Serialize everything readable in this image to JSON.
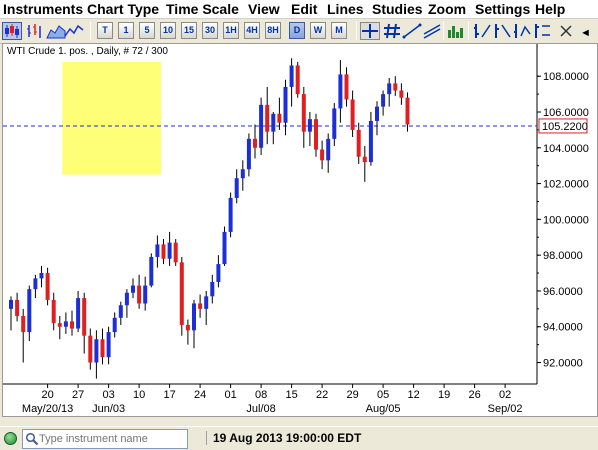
{
  "menu": [
    "Instruments",
    "Chart Type",
    "Time Scale",
    "View",
    "Edit",
    "Lines",
    "Studies",
    "Zoom",
    "Settings",
    "Help"
  ],
  "toolbar": {
    "timeframes": [
      "T",
      "1",
      "5",
      "10",
      "15",
      "30",
      "1H",
      "4H",
      "8H",
      "D",
      "W",
      "M"
    ],
    "active_timeframe": "D",
    "scroll_glyph": "◄"
  },
  "chart": {
    "title": "WTI Crude 1. pos. , Daily, # 72 / 300",
    "price_label": "105.2200",
    "colors": {
      "up": "#1c2ed6",
      "down": "#e02020",
      "highlight": "#ffff77",
      "hline": "#1c2ed6",
      "price_box": "#dd2222"
    }
  },
  "chart_data": {
    "type": "candlestick",
    "y_ticks": [
      "92.0000",
      "94.0000",
      "96.0000",
      "98.0000",
      "100.0000",
      "102.0000",
      "104.0000",
      "106.0000",
      "108.0000"
    ],
    "ylim": [
      90.8,
      109.8
    ],
    "x_day_labels": [
      "20",
      "27",
      "03",
      "10",
      "17",
      "24",
      "01",
      "08",
      "15",
      "22",
      "29",
      "05",
      "12",
      "19",
      "26",
      "02"
    ],
    "x_month_labels": [
      "May/20/13",
      "Jun/03",
      "Jul/08",
      "Aug/05",
      "Sep/02"
    ],
    "horizontal_line": 105.22,
    "highlight_box": {
      "x_start": 8.4,
      "x_end": 24.6,
      "y_low": 102.5,
      "y_high": 108.8
    },
    "candles": [
      {
        "o": 95.0,
        "h": 95.7,
        "l": 93.8,
        "c": 95.5
      },
      {
        "o": 95.5,
        "h": 95.9,
        "l": 94.3,
        "c": 94.6
      },
      {
        "o": 94.6,
        "h": 95.0,
        "l": 92.0,
        "c": 93.7
      },
      {
        "o": 93.7,
        "h": 96.3,
        "l": 93.2,
        "c": 96.1
      },
      {
        "o": 96.1,
        "h": 96.9,
        "l": 95.6,
        "c": 96.7
      },
      {
        "o": 96.7,
        "h": 97.4,
        "l": 96.2,
        "c": 97.0
      },
      {
        "o": 97.0,
        "h": 97.3,
        "l": 95.2,
        "c": 95.5
      },
      {
        "o": 95.5,
        "h": 95.9,
        "l": 93.8,
        "c": 94.2
      },
      {
        "o": 94.2,
        "h": 94.6,
        "l": 93.3,
        "c": 94.0
      },
      {
        "o": 94.0,
        "h": 94.8,
        "l": 93.6,
        "c": 94.3
      },
      {
        "o": 94.3,
        "h": 94.9,
        "l": 93.5,
        "c": 93.9
      },
      {
        "o": 93.9,
        "h": 96.0,
        "l": 93.7,
        "c": 95.6
      },
      {
        "o": 95.6,
        "h": 95.9,
        "l": 92.5,
        "c": 93.5
      },
      {
        "o": 93.5,
        "h": 93.9,
        "l": 91.6,
        "c": 92.0
      },
      {
        "o": 92.0,
        "h": 93.8,
        "l": 91.1,
        "c": 93.3
      },
      {
        "o": 93.3,
        "h": 93.9,
        "l": 91.9,
        "c": 92.3
      },
      {
        "o": 92.3,
        "h": 94.0,
        "l": 91.9,
        "c": 93.7
      },
      {
        "o": 93.7,
        "h": 94.8,
        "l": 93.4,
        "c": 94.5
      },
      {
        "o": 94.5,
        "h": 95.4,
        "l": 94.1,
        "c": 95.2
      },
      {
        "o": 95.2,
        "h": 96.1,
        "l": 94.5,
        "c": 95.9
      },
      {
        "o": 95.9,
        "h": 96.7,
        "l": 95.6,
        "c": 96.3
      },
      {
        "o": 96.3,
        "h": 96.9,
        "l": 95.0,
        "c": 95.3
      },
      {
        "o": 95.3,
        "h": 96.8,
        "l": 94.9,
        "c": 96.3
      },
      {
        "o": 96.3,
        "h": 98.1,
        "l": 96.2,
        "c": 97.9
      },
      {
        "o": 97.9,
        "h": 99.1,
        "l": 97.3,
        "c": 98.6
      },
      {
        "o": 98.6,
        "h": 98.9,
        "l": 97.5,
        "c": 97.8
      },
      {
        "o": 97.8,
        "h": 99.3,
        "l": 97.4,
        "c": 98.7
      },
      {
        "o": 98.7,
        "h": 98.9,
        "l": 97.4,
        "c": 97.6
      },
      {
        "o": 97.6,
        "h": 97.9,
        "l": 93.5,
        "c": 94.1
      },
      {
        "o": 94.1,
        "h": 94.4,
        "l": 93.0,
        "c": 93.8
      },
      {
        "o": 93.8,
        "h": 95.5,
        "l": 92.8,
        "c": 95.3
      },
      {
        "o": 95.3,
        "h": 95.8,
        "l": 94.5,
        "c": 95.0
      },
      {
        "o": 95.0,
        "h": 96.0,
        "l": 94.1,
        "c": 95.7
      },
      {
        "o": 95.7,
        "h": 96.9,
        "l": 95.3,
        "c": 96.5
      },
      {
        "o": 96.5,
        "h": 98.0,
        "l": 96.2,
        "c": 97.5
      },
      {
        "o": 97.5,
        "h": 99.6,
        "l": 97.4,
        "c": 99.3
      },
      {
        "o": 99.3,
        "h": 101.5,
        "l": 99.0,
        "c": 101.2
      },
      {
        "o": 101.2,
        "h": 102.8,
        "l": 100.9,
        "c": 102.3
      },
      {
        "o": 102.3,
        "h": 103.3,
        "l": 101.6,
        "c": 102.8
      },
      {
        "o": 102.8,
        "h": 104.8,
        "l": 102.4,
        "c": 104.5
      },
      {
        "o": 104.5,
        "h": 105.3,
        "l": 103.4,
        "c": 104.0
      },
      {
        "o": 104.0,
        "h": 106.8,
        "l": 103.6,
        "c": 106.4
      },
      {
        "o": 106.4,
        "h": 107.4,
        "l": 104.2,
        "c": 104.9
      },
      {
        "o": 104.9,
        "h": 106.0,
        "l": 104.2,
        "c": 105.9
      },
      {
        "o": 105.9,
        "h": 106.8,
        "l": 105.0,
        "c": 105.4
      },
      {
        "o": 105.4,
        "h": 107.8,
        "l": 104.7,
        "c": 107.4
      },
      {
        "o": 107.4,
        "h": 109.0,
        "l": 106.3,
        "c": 108.6
      },
      {
        "o": 108.6,
        "h": 108.8,
        "l": 106.8,
        "c": 107.0
      },
      {
        "o": 107.0,
        "h": 107.4,
        "l": 104.0,
        "c": 104.9
      },
      {
        "o": 104.9,
        "h": 106.0,
        "l": 104.1,
        "c": 105.6
      },
      {
        "o": 105.6,
        "h": 105.9,
        "l": 103.5,
        "c": 103.9
      },
      {
        "o": 103.9,
        "h": 104.4,
        "l": 102.8,
        "c": 103.3
      },
      {
        "o": 103.3,
        "h": 104.8,
        "l": 102.6,
        "c": 104.5
      },
      {
        "o": 104.5,
        "h": 106.5,
        "l": 104.1,
        "c": 106.2
      },
      {
        "o": 106.2,
        "h": 108.9,
        "l": 105.4,
        "c": 108.1
      },
      {
        "o": 108.1,
        "h": 108.5,
        "l": 106.3,
        "c": 106.7
      },
      {
        "o": 106.7,
        "h": 107.2,
        "l": 104.6,
        "c": 105.0
      },
      {
        "o": 105.0,
        "h": 105.4,
        "l": 103.1,
        "c": 103.5
      },
      {
        "o": 103.5,
        "h": 104.1,
        "l": 102.1,
        "c": 103.2
      },
      {
        "o": 103.2,
        "h": 106.0,
        "l": 103.0,
        "c": 105.5
      },
      {
        "o": 105.5,
        "h": 106.6,
        "l": 104.7,
        "c": 106.3
      },
      {
        "o": 106.3,
        "h": 107.2,
        "l": 105.8,
        "c": 107.0
      },
      {
        "o": 107.0,
        "h": 107.9,
        "l": 106.3,
        "c": 107.6
      },
      {
        "o": 107.6,
        "h": 108.0,
        "l": 106.9,
        "c": 107.2
      },
      {
        "o": 107.2,
        "h": 107.6,
        "l": 106.4,
        "c": 106.8
      },
      {
        "o": 106.8,
        "h": 107.1,
        "l": 104.9,
        "c": 105.3
      }
    ]
  },
  "status": {
    "search_placeholder": "Type instrument name",
    "datetime": "19 Aug 2013 19:00:00 EDT"
  }
}
